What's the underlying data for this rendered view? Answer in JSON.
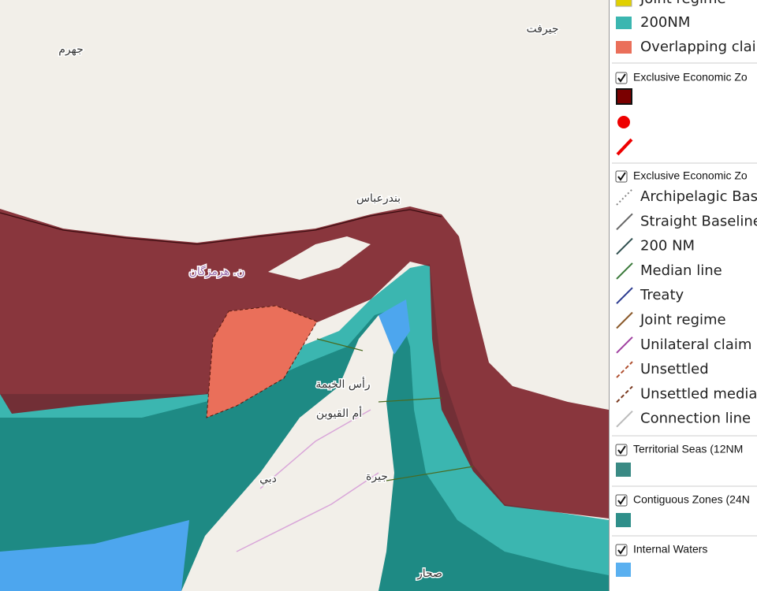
{
  "map": {
    "labels": [
      "جهرم",
      "جيرفت",
      "بندرعباس",
      "ن. هرمزگان",
      "رأس الخيمة",
      "أم القيوين",
      "دبي",
      "جيرة",
      "صحار"
    ]
  },
  "legend": {
    "group0": {
      "items": [
        "Joint regime",
        "200NM",
        "Overlapping clai"
      ]
    },
    "group1": {
      "title": "Exclusive Economic Zo"
    },
    "group2": {
      "title": "Exclusive Economic Zo",
      "items": [
        "Archipelagic Bas",
        "Straight Baseline",
        "200 NM",
        "Median line",
        "Treaty",
        "Joint regime",
        "Unilateral claim (",
        "Unsettled",
        "Unsettled media",
        "Connection line"
      ]
    },
    "group3": {
      "title": "Territorial Seas (12NM"
    },
    "group4": {
      "title": "Contiguous Zones (24N"
    },
    "group5": {
      "title": "Internal Waters"
    }
  }
}
